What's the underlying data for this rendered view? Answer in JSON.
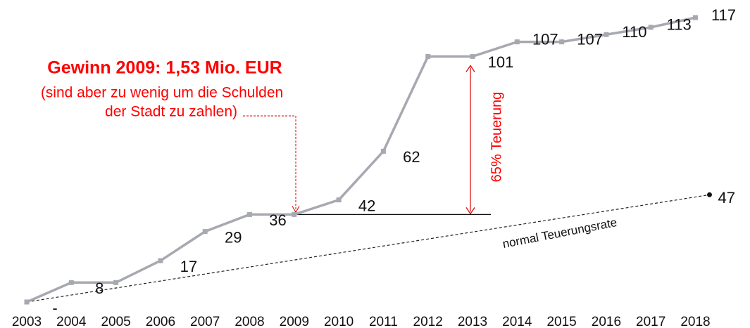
{
  "chart_data": {
    "type": "line",
    "categories": [
      "2003",
      "2004",
      "2005",
      "2006",
      "2007",
      "2008",
      "2009",
      "2010",
      "2011",
      "2012",
      "2013",
      "2014",
      "2015",
      "2016",
      "2017",
      "2018"
    ],
    "series": [
      {
        "color": "#a7a9b1",
        "values": [
          0,
          8,
          8,
          17,
          29,
          36,
          36,
          42,
          62,
          101,
          101,
          107,
          107,
          110,
          113,
          117
        ],
        "value_labels": [
          "-",
          "8",
          null,
          "17",
          "29",
          "36",
          null,
          "42",
          "62",
          null,
          "101",
          "107",
          "107",
          "110",
          "113",
          "117"
        ]
      }
    ],
    "ylim": [
      0,
      117
    ],
    "trend": {
      "label": "normal Teuerungsrate",
      "start": 0,
      "end": 47
    },
    "annotations": {
      "gain_title": "Gewinn 2009: 1,53 Mio. EUR",
      "gain_note_1": "(sind aber zu wenig um die Schulden",
      "gain_note_2": "der Stadt zu zahlen)",
      "increase": "65% Teuerung"
    }
  }
}
